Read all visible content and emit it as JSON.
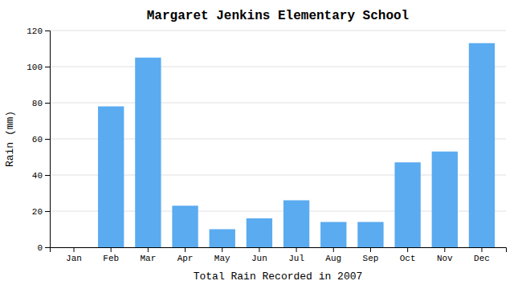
{
  "chart_data": {
    "type": "bar",
    "title": "Margaret Jenkins Elementary School",
    "xlabel": "Total Rain Recorded in 2007",
    "ylabel": "Rain (mm)",
    "categories": [
      "Jan",
      "Feb",
      "Mar",
      "Apr",
      "May",
      "Jun",
      "Jul",
      "Aug",
      "Sep",
      "Oct",
      "Nov",
      "Dec"
    ],
    "values": [
      0,
      78,
      105,
      23,
      10,
      16,
      26,
      14,
      14,
      47,
      53,
      113
    ],
    "color": "#5aabf0",
    "ylim": [
      0,
      120
    ],
    "yticks": [
      0,
      20,
      40,
      60,
      80,
      100,
      120
    ],
    "grid": true
  }
}
